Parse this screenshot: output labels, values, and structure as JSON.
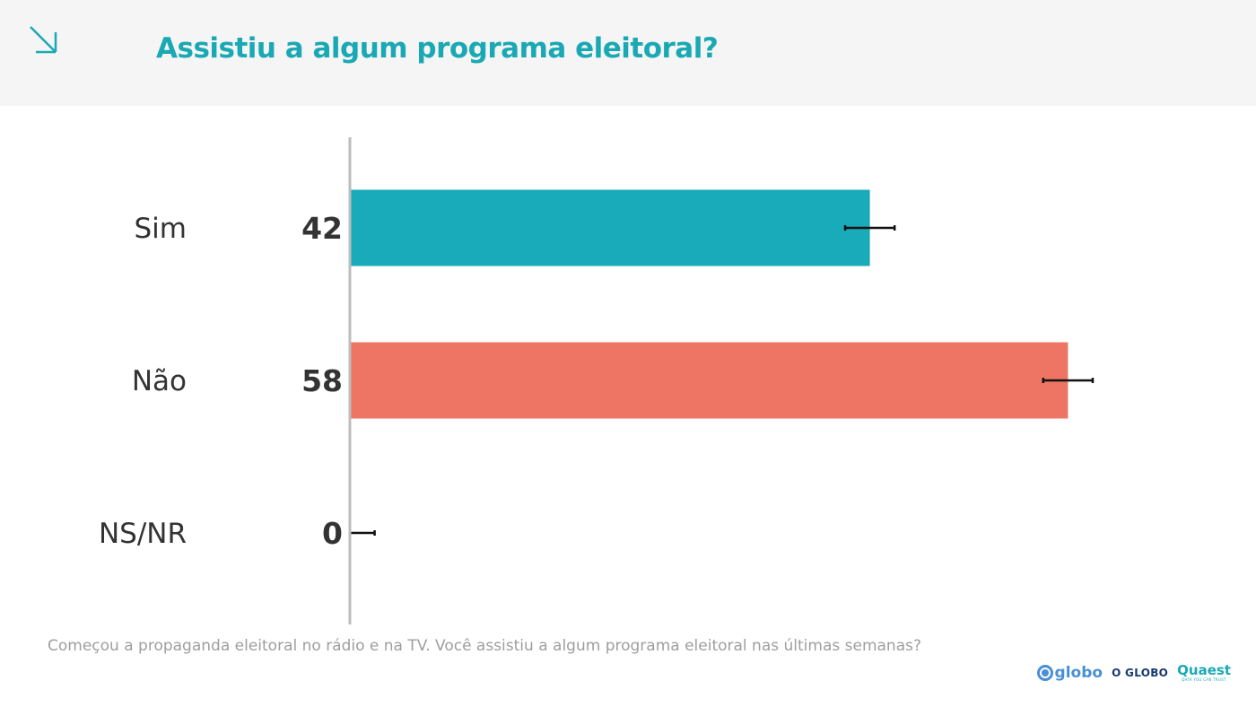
{
  "header": {
    "title": "Assistiu a algum programa eleitoral?"
  },
  "chart_data": {
    "type": "bar",
    "orientation": "horizontal",
    "categories": [
      "Sim",
      "Não",
      "NS/NR"
    ],
    "values": [
      42,
      58,
      0
    ],
    "value_labels": [
      "42",
      "58",
      "0"
    ],
    "error_margin": 2,
    "colors": [
      "#19abb9",
      "#ee7563",
      "#bdbdbd"
    ],
    "xlim": [
      0,
      100
    ],
    "grid": false,
    "legend": "none"
  },
  "footer": {
    "question": "Começou a propaganda eleitoral no rádio e na TV. Você assistiu a algum programa eleitoral nas últimas semanas?",
    "logos": {
      "globo": "globo",
      "oglobo": "O GLOBO",
      "quaest": "Quaest",
      "quaest_tagline": "DATA YOU CAN TRUST"
    }
  }
}
